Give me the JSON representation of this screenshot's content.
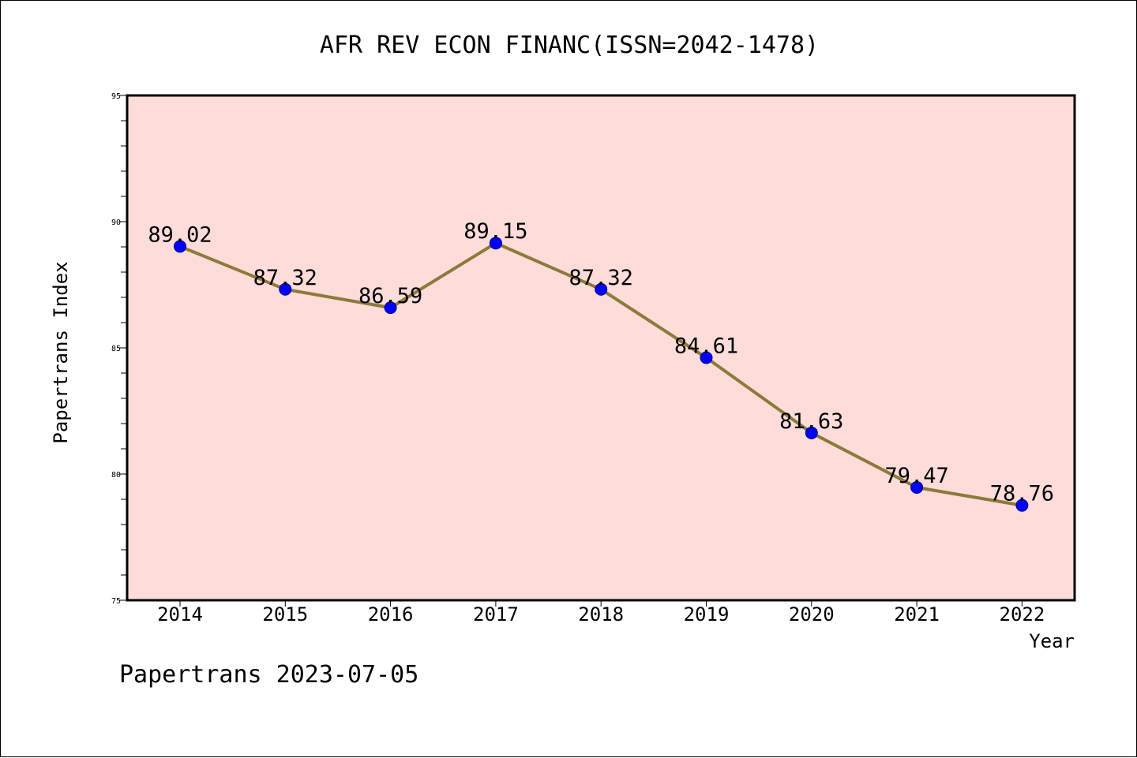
{
  "chart_data": {
    "type": "line",
    "title": "AFR REV ECON FINANC(ISSN=2042-1478)",
    "xlabel": "Year",
    "ylabel": "Papertrans Index",
    "categories": [
      "2014",
      "2015",
      "2016",
      "2017",
      "2018",
      "2019",
      "2020",
      "2021",
      "2022"
    ],
    "values": [
      89.02,
      87.32,
      86.59,
      89.15,
      87.32,
      84.61,
      81.63,
      79.47,
      78.76
    ],
    "data_labels": [
      "89.02",
      "87.32",
      "86.59",
      "89.15",
      "87.32",
      "84.61",
      "81.63",
      "79.47",
      "78.76"
    ],
    "ylim": [
      75,
      95
    ],
    "yticks": [
      75,
      80,
      85,
      90,
      95
    ],
    "grid": false,
    "colors": {
      "plot_background": "#fddcd9",
      "line": "#8c7a3a",
      "marker_fill": "#0000ff",
      "marker_edge": "#000080"
    }
  },
  "footer": {
    "text": "Papertrans 2023-07-05"
  }
}
